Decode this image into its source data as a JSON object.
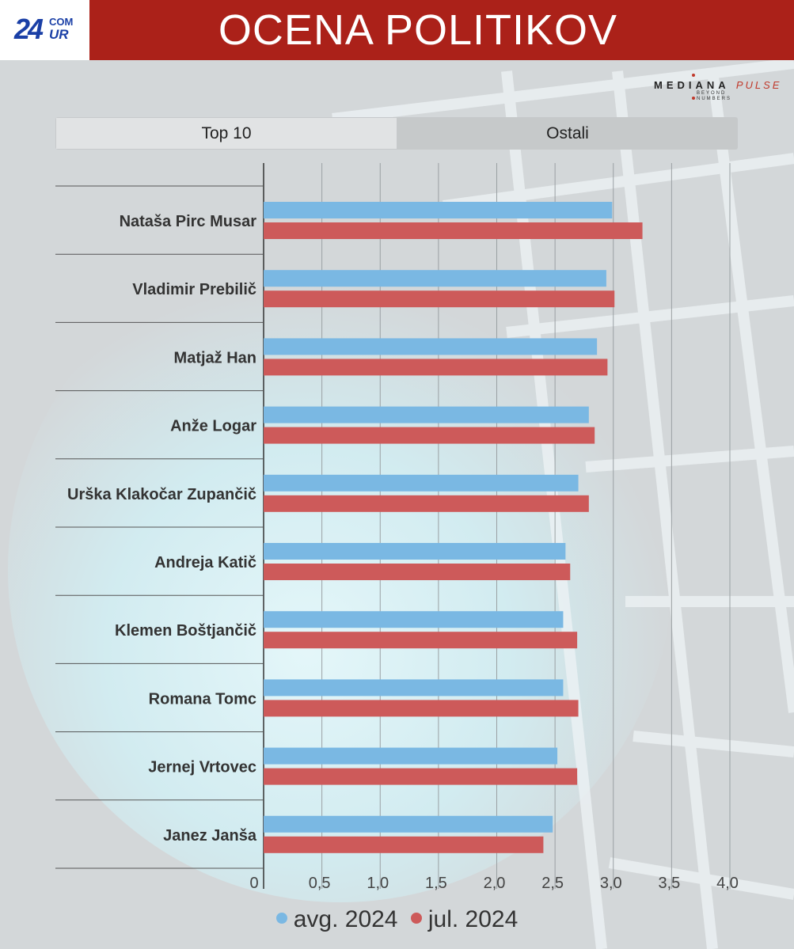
{
  "header": {
    "logo_number": "24",
    "logo_top": "COM",
    "logo_bottom": "UR",
    "title": "OCENA POLITIKOV"
  },
  "brand": {
    "name": "MEDIANA",
    "suffix": "PULSE",
    "tagline_1": "BEYOND",
    "tagline_2": "NUMBERS"
  },
  "tabs": [
    {
      "label": "Top 10",
      "active": true
    },
    {
      "label": "Ostali",
      "active": false
    }
  ],
  "colors": {
    "header_red": "#ab2119",
    "series_blue": "#7ab8e3",
    "series_red": "#cd5a5a"
  },
  "chart_data": {
    "type": "bar",
    "orientation": "horizontal",
    "categories": [
      "Nataša Pirc Musar",
      "Vladimir Prebilič",
      "Matjaž Han",
      "Anže Logar",
      "Urška Klakočar Zupančič",
      "Andreja Katič",
      "Klemen Boštjančič",
      "Romana Tomc",
      "Jernej Vrtovec",
      "Janez Janša"
    ],
    "series": [
      {
        "name": "avg. 2024",
        "color": "#7ab8e3",
        "values": [
          2.99,
          2.94,
          2.86,
          2.79,
          2.7,
          2.59,
          2.57,
          2.57,
          2.52,
          2.48
        ]
      },
      {
        "name": "jul. 2024",
        "color": "#cd5a5a",
        "values": [
          3.25,
          3.01,
          2.95,
          2.84,
          2.79,
          2.63,
          2.69,
          2.7,
          2.69,
          2.4
        ]
      }
    ],
    "xlim": [
      0,
      4
    ],
    "xticks": [
      "0",
      "0,5",
      "1,0",
      "1,5",
      "2,0",
      "2,5",
      "3,0",
      "3,5",
      "4,0"
    ],
    "grid": true,
    "legend_position": "bottom-center"
  }
}
